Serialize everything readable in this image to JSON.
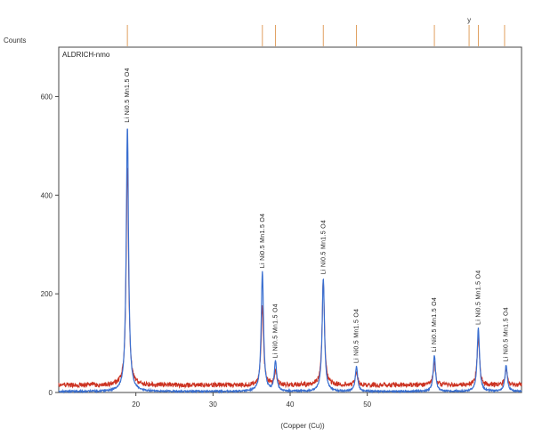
{
  "chart_data": {
    "type": "line",
    "ylabel": "Counts",
    "xlabel": "(Copper (Cu))",
    "phase_label": "ALDRICH-nmo",
    "xlim": [
      10,
      70
    ],
    "ylim": [
      0,
      700
    ],
    "xticks": [
      20,
      30,
      40,
      50
    ],
    "yticks": [
      0,
      200,
      400,
      600
    ],
    "grid": false,
    "series": [
      {
        "color": "#cc3322",
        "baseline": 15,
        "peaks": [
          {
            "x": 18.9,
            "y": 460
          },
          {
            "x": 36.4,
            "y": 178
          },
          {
            "x": 38.1,
            "y": 45
          },
          {
            "x": 44.3,
            "y": 230
          },
          {
            "x": 48.6,
            "y": 42
          },
          {
            "x": 58.7,
            "y": 60
          },
          {
            "x": 64.4,
            "y": 115
          },
          {
            "x": 68.0,
            "y": 48
          }
        ]
      },
      {
        "color": "#3a6fd0",
        "baseline": 2,
        "peaks": [
          {
            "x": 18.9,
            "y": 540
          },
          {
            "x": 36.4,
            "y": 245
          },
          {
            "x": 38.1,
            "y": 62
          },
          {
            "x": 44.3,
            "y": 232
          },
          {
            "x": 48.6,
            "y": 52
          },
          {
            "x": 58.7,
            "y": 75
          },
          {
            "x": 64.4,
            "y": 130
          },
          {
            "x": 68.0,
            "y": 55
          }
        ]
      }
    ],
    "peak_labels": [
      {
        "x": 18.9,
        "text": "Li Ni0.5 Mn1.5 O4"
      },
      {
        "x": 36.4,
        "text": "Li Ni0.5 Mn1.5 O4"
      },
      {
        "x": 38.1,
        "text": "Li Ni0.5 Mn1.5 O4"
      },
      {
        "x": 44.3,
        "text": "Li Ni0.5 Mn1.5 O4"
      },
      {
        "x": 48.6,
        "text": "Li Ni0.5 Mn1.5 O4"
      },
      {
        "x": 58.7,
        "text": "Li Ni0.5 Mn1.5 O4"
      },
      {
        "x": 64.4,
        "text": "Li Ni0.5 Mn1.5 O4"
      },
      {
        "x": 68.0,
        "text": "Li Ni0.5 Mn1.5 O4"
      }
    ],
    "reference_lines": {
      "color": "#e0a060",
      "x": [
        18.9,
        36.4,
        38.1,
        44.3,
        48.6,
        58.7,
        63.2,
        64.4,
        67.8
      ],
      "marker": {
        "x": 63.2,
        "text": "y"
      }
    }
  }
}
